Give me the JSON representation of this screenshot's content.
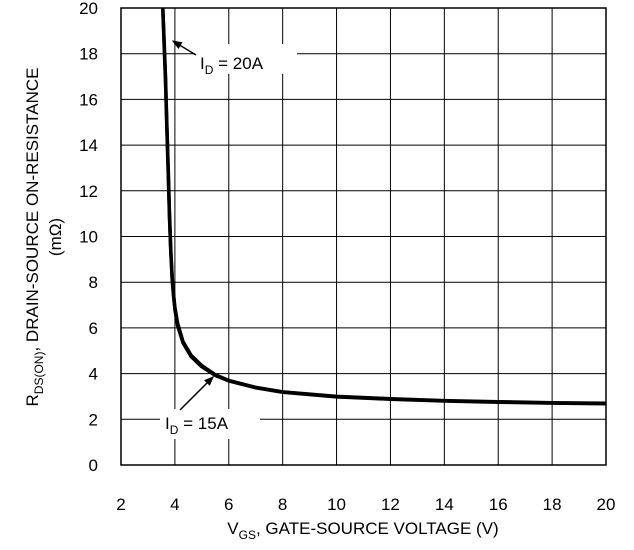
{
  "chart_data": {
    "type": "line",
    "title": "",
    "xlabel": {
      "main": "V",
      "sub": "GS",
      "rest": ", GATE-SOURCE VOLTAGE (V)"
    },
    "ylabel": {
      "line1_main": "R",
      "line1_sub": "DS(ON)",
      "line1_rest": ", DRAIN-SOURCE ON-RESISTANCE",
      "line2": "(mΩ)"
    },
    "xlim": [
      2,
      20
    ],
    "ylim": [
      0,
      20
    ],
    "x_ticks": [
      "2",
      "4",
      "6",
      "8",
      "10",
      "12",
      "14",
      "16",
      "18",
      "20"
    ],
    "y_ticks": [
      "0",
      "2",
      "4",
      "6",
      "8",
      "10",
      "12",
      "14",
      "16",
      "18",
      "20"
    ],
    "grid": true,
    "series": [
      {
        "name": "I_D = 20A",
        "x": [
          3.55,
          3.6,
          3.65,
          3.7,
          3.75,
          3.8,
          3.85,
          3.9,
          3.95,
          4.0,
          4.1,
          4.3,
          4.6,
          5.0,
          5.5,
          6.0,
          7.0,
          8.0,
          10.0,
          12.0,
          14.0,
          16.0,
          18.0,
          20.0
        ],
        "y": [
          20.0,
          18.6,
          17.0,
          15.0,
          13.0,
          11.0,
          9.4,
          8.2,
          7.5,
          6.9,
          6.2,
          5.4,
          4.8,
          4.35,
          3.95,
          3.7,
          3.4,
          3.2,
          3.0,
          2.9,
          2.82,
          2.77,
          2.72,
          2.7
        ]
      },
      {
        "name": "I_D = 15A",
        "x": [
          3.55,
          3.6,
          3.65,
          3.7,
          3.75,
          3.8,
          3.85,
          3.9,
          3.95,
          4.0,
          4.1,
          4.3,
          4.6,
          5.0,
          5.5,
          6.0,
          7.0,
          8.0,
          10.0,
          12.0,
          14.0,
          16.0,
          18.0,
          20.0
        ],
        "y": [
          20.0,
          18.4,
          16.8,
          14.8,
          12.8,
          10.8,
          9.3,
          8.1,
          7.4,
          6.8,
          6.1,
          5.35,
          4.75,
          4.3,
          3.92,
          3.68,
          3.38,
          3.18,
          2.98,
          2.88,
          2.8,
          2.75,
          2.71,
          2.68
        ]
      }
    ],
    "annotations": [
      {
        "main": "I",
        "sub": "D",
        "rest": " = 20A",
        "points_to": [
          3.85,
          18.6
        ]
      },
      {
        "main": "I",
        "sub": "D",
        "rest": " = 15A",
        "points_to": [
          5.5,
          3.95
        ]
      }
    ]
  }
}
